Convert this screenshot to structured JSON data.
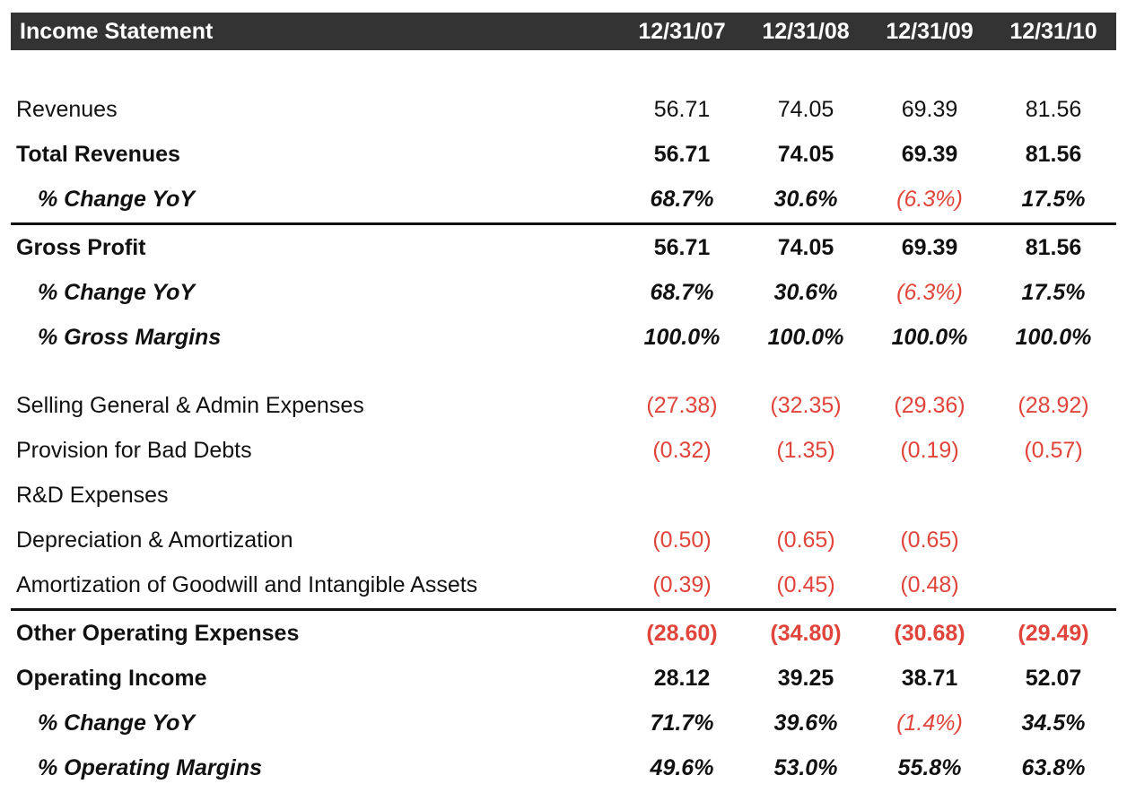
{
  "header": {
    "title": "Income Statement",
    "dates": [
      "12/31/07",
      "12/31/08",
      "12/31/09",
      "12/31/10"
    ]
  },
  "rows": [
    {
      "label": "Revenues",
      "values": [
        "56.71",
        "74.05",
        "69.39",
        "81.56"
      ]
    },
    {
      "label": "Total Revenues",
      "values": [
        "56.71",
        "74.05",
        "69.39",
        "81.56"
      ]
    },
    {
      "label": "% Change YoY",
      "values": [
        "68.7%",
        "30.6%",
        "(6.3%)",
        "17.5%"
      ]
    },
    {
      "label": "Gross Profit",
      "values": [
        "56.71",
        "74.05",
        "69.39",
        "81.56"
      ]
    },
    {
      "label": "% Change YoY",
      "values": [
        "68.7%",
        "30.6%",
        "(6.3%)",
        "17.5%"
      ]
    },
    {
      "label": "% Gross Margins",
      "values": [
        "100.0%",
        "100.0%",
        "100.0%",
        "100.0%"
      ]
    },
    {
      "label": "Selling General & Admin Expenses",
      "values": [
        "(27.38)",
        "(32.35)",
        "(29.36)",
        "(28.92)"
      ]
    },
    {
      "label": "Provision for Bad Debts",
      "values": [
        "(0.32)",
        "(1.35)",
        "(0.19)",
        "(0.57)"
      ]
    },
    {
      "label": "R&D Expenses",
      "values": [
        "",
        "",
        "",
        ""
      ]
    },
    {
      "label": "Depreciation & Amortization",
      "values": [
        "(0.50)",
        "(0.65)",
        "(0.65)",
        ""
      ]
    },
    {
      "label": "Amortization of Goodwill and Intangible Assets",
      "values": [
        "(0.39)",
        "(0.45)",
        "(0.48)",
        ""
      ]
    },
    {
      "label": "Other Operating Expenses",
      "values": [
        "(28.60)",
        "(34.80)",
        "(30.68)",
        "(29.49)"
      ]
    },
    {
      "label": "Operating Income",
      "values": [
        "28.12",
        "39.25",
        "38.71",
        "52.07"
      ]
    },
    {
      "label": "% Change YoY",
      "values": [
        "71.7%",
        "39.6%",
        "(1.4%)",
        "34.5%"
      ]
    },
    {
      "label": "% Operating Margins",
      "values": [
        "49.6%",
        "53.0%",
        "55.8%",
        "63.8%"
      ]
    }
  ],
  "colors": {
    "header_bg": "#333333",
    "negative": "#e0443a",
    "text": "#111111"
  }
}
